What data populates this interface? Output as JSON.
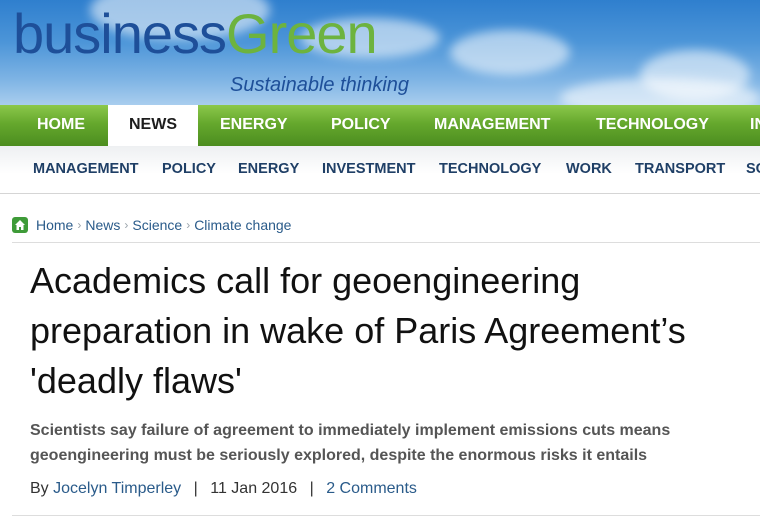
{
  "brand": {
    "logo_part1": "business",
    "logo_part2": "Green",
    "tagline": "Sustainable thinking"
  },
  "primary_nav": [
    "HOME",
    "NEWS",
    "ENERGY",
    "POLICY",
    "MANAGEMENT",
    "TECHNOLOGY",
    "IN"
  ],
  "primary_nav_active": "NEWS",
  "secondary_nav": [
    "MANAGEMENT",
    "POLICY",
    "ENERGY",
    "INVESTMENT",
    "TECHNOLOGY",
    "WORK",
    "TRANSPORT",
    "SC"
  ],
  "breadcrumb": [
    "Home",
    "News",
    "Science",
    "Climate change"
  ],
  "article": {
    "title": "Academics call for geoengineering preparation in wake of Paris Agreement’s 'deadly flaws'",
    "standfirst": "Scientists say failure of agreement to immediately implement emissions cuts means geoengineering must be seriously explored, despite the enormous risks it entails",
    "byline_prefix": "By",
    "author": "Jocelyn Timperley",
    "date": "11 Jan 2016",
    "comments": "2 Comments"
  },
  "colors": {
    "brand_blue": "#1e4f99",
    "brand_green": "#6db33f",
    "nav_green": "#65a82d",
    "link_blue": "#2a5b8a"
  }
}
